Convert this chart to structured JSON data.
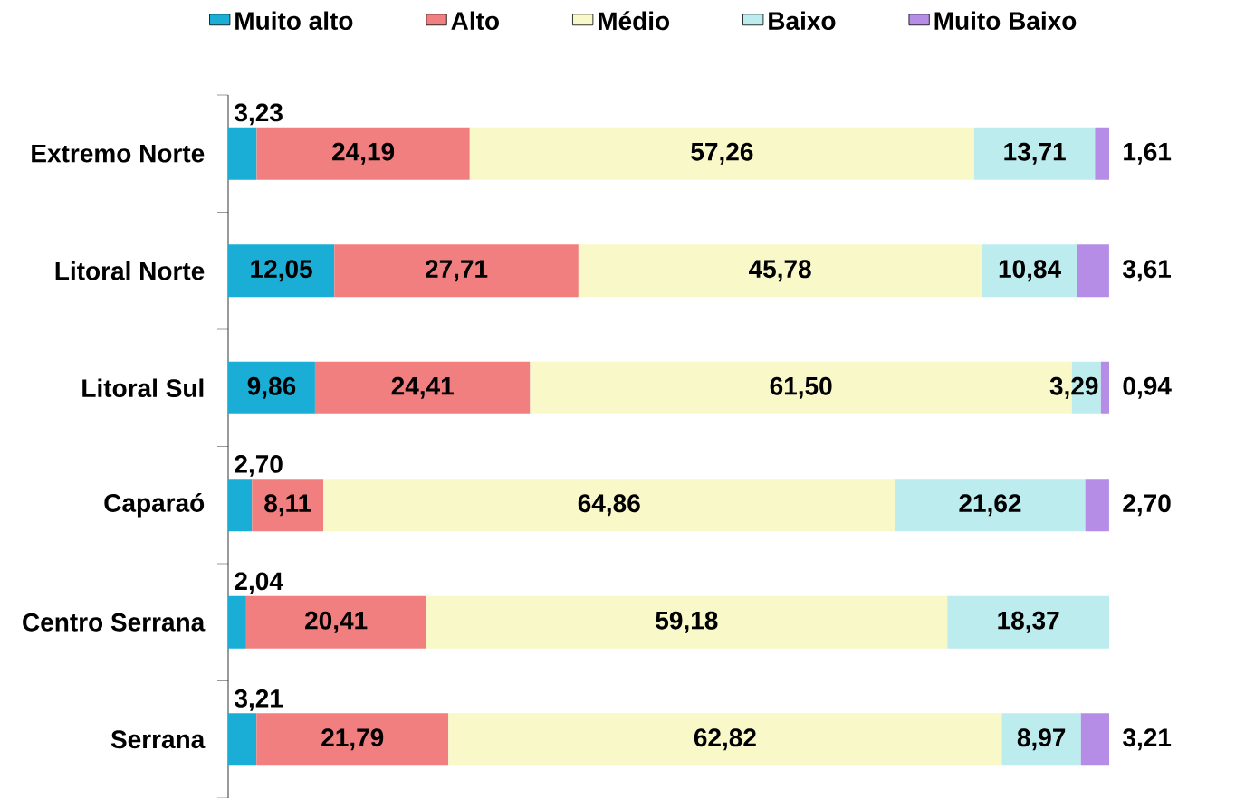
{
  "chart_data": {
    "type": "bar",
    "orientation": "horizontal",
    "stacked": true,
    "legend": "top",
    "categories": [
      "Extremo Norte",
      "Litoral Norte",
      "Litoral Sul",
      "Caparaó",
      "Centro Serrana",
      "Serrana"
    ],
    "series": [
      {
        "name": "Muito alto",
        "color": "#1aaed6",
        "values": [
          3.23,
          12.05,
          9.86,
          2.7,
          2.04,
          3.21
        ],
        "value_labels": [
          "3,23",
          "12,05",
          "9,86",
          "2,70",
          "2,04",
          "3,21"
        ]
      },
      {
        "name": "Alto",
        "color": "#f27f7f",
        "values": [
          24.19,
          27.71,
          24.41,
          8.11,
          20.41,
          21.79
        ],
        "value_labels": [
          "24,19",
          "27,71",
          "24,41",
          "8,11",
          "20,41",
          "21,79"
        ]
      },
      {
        "name": "Médio",
        "color": "#f8f8c8",
        "values": [
          57.26,
          45.78,
          61.5,
          64.86,
          59.18,
          62.82
        ],
        "value_labels": [
          "57,26",
          "45,78",
          "61,50",
          "64,86",
          "59,18",
          "62,82"
        ]
      },
      {
        "name": "Baixo",
        "color": "#bcecee",
        "values": [
          13.71,
          10.84,
          3.29,
          21.62,
          18.37,
          8.97
        ],
        "value_labels": [
          "13,71",
          "10,84",
          "3,29",
          "21,62",
          "18,37",
          "8,97"
        ]
      },
      {
        "name": "Muito Baixo",
        "color": "#b58ce6",
        "values": [
          1.61,
          3.61,
          0.94,
          2.7,
          null,
          3.21
        ],
        "value_labels": [
          "1,61",
          "3,61",
          "0,94",
          "2,70",
          null,
          "3,21"
        ]
      }
    ]
  }
}
